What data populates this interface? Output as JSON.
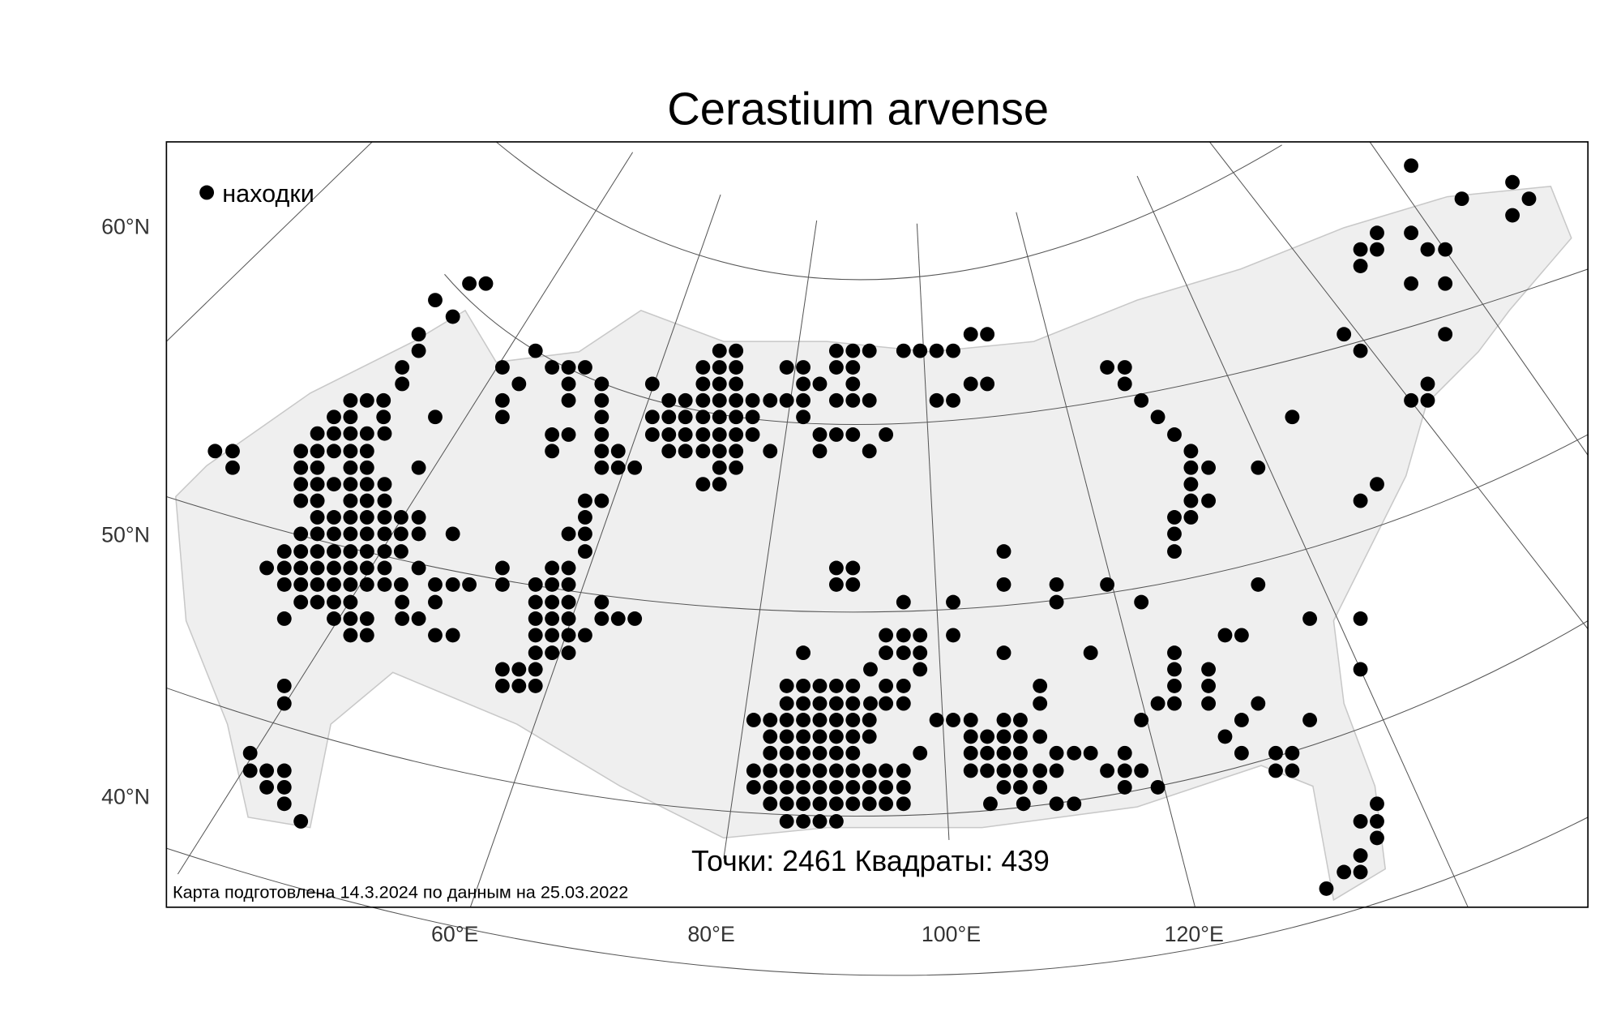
{
  "title": "Cerastium arvense",
  "legend": {
    "label": "находки"
  },
  "stats": "Точки: 2461 Квадраты: 439",
  "footnote": "Карта подготовлена 14.3.2024 по данным на 25.03.2022",
  "axes": {
    "lat_labels": [
      "60°N",
      "50°N",
      "40°N"
    ],
    "lon_labels": [
      "60°E",
      "80°E",
      "100°E",
      "120°E"
    ]
  }
}
